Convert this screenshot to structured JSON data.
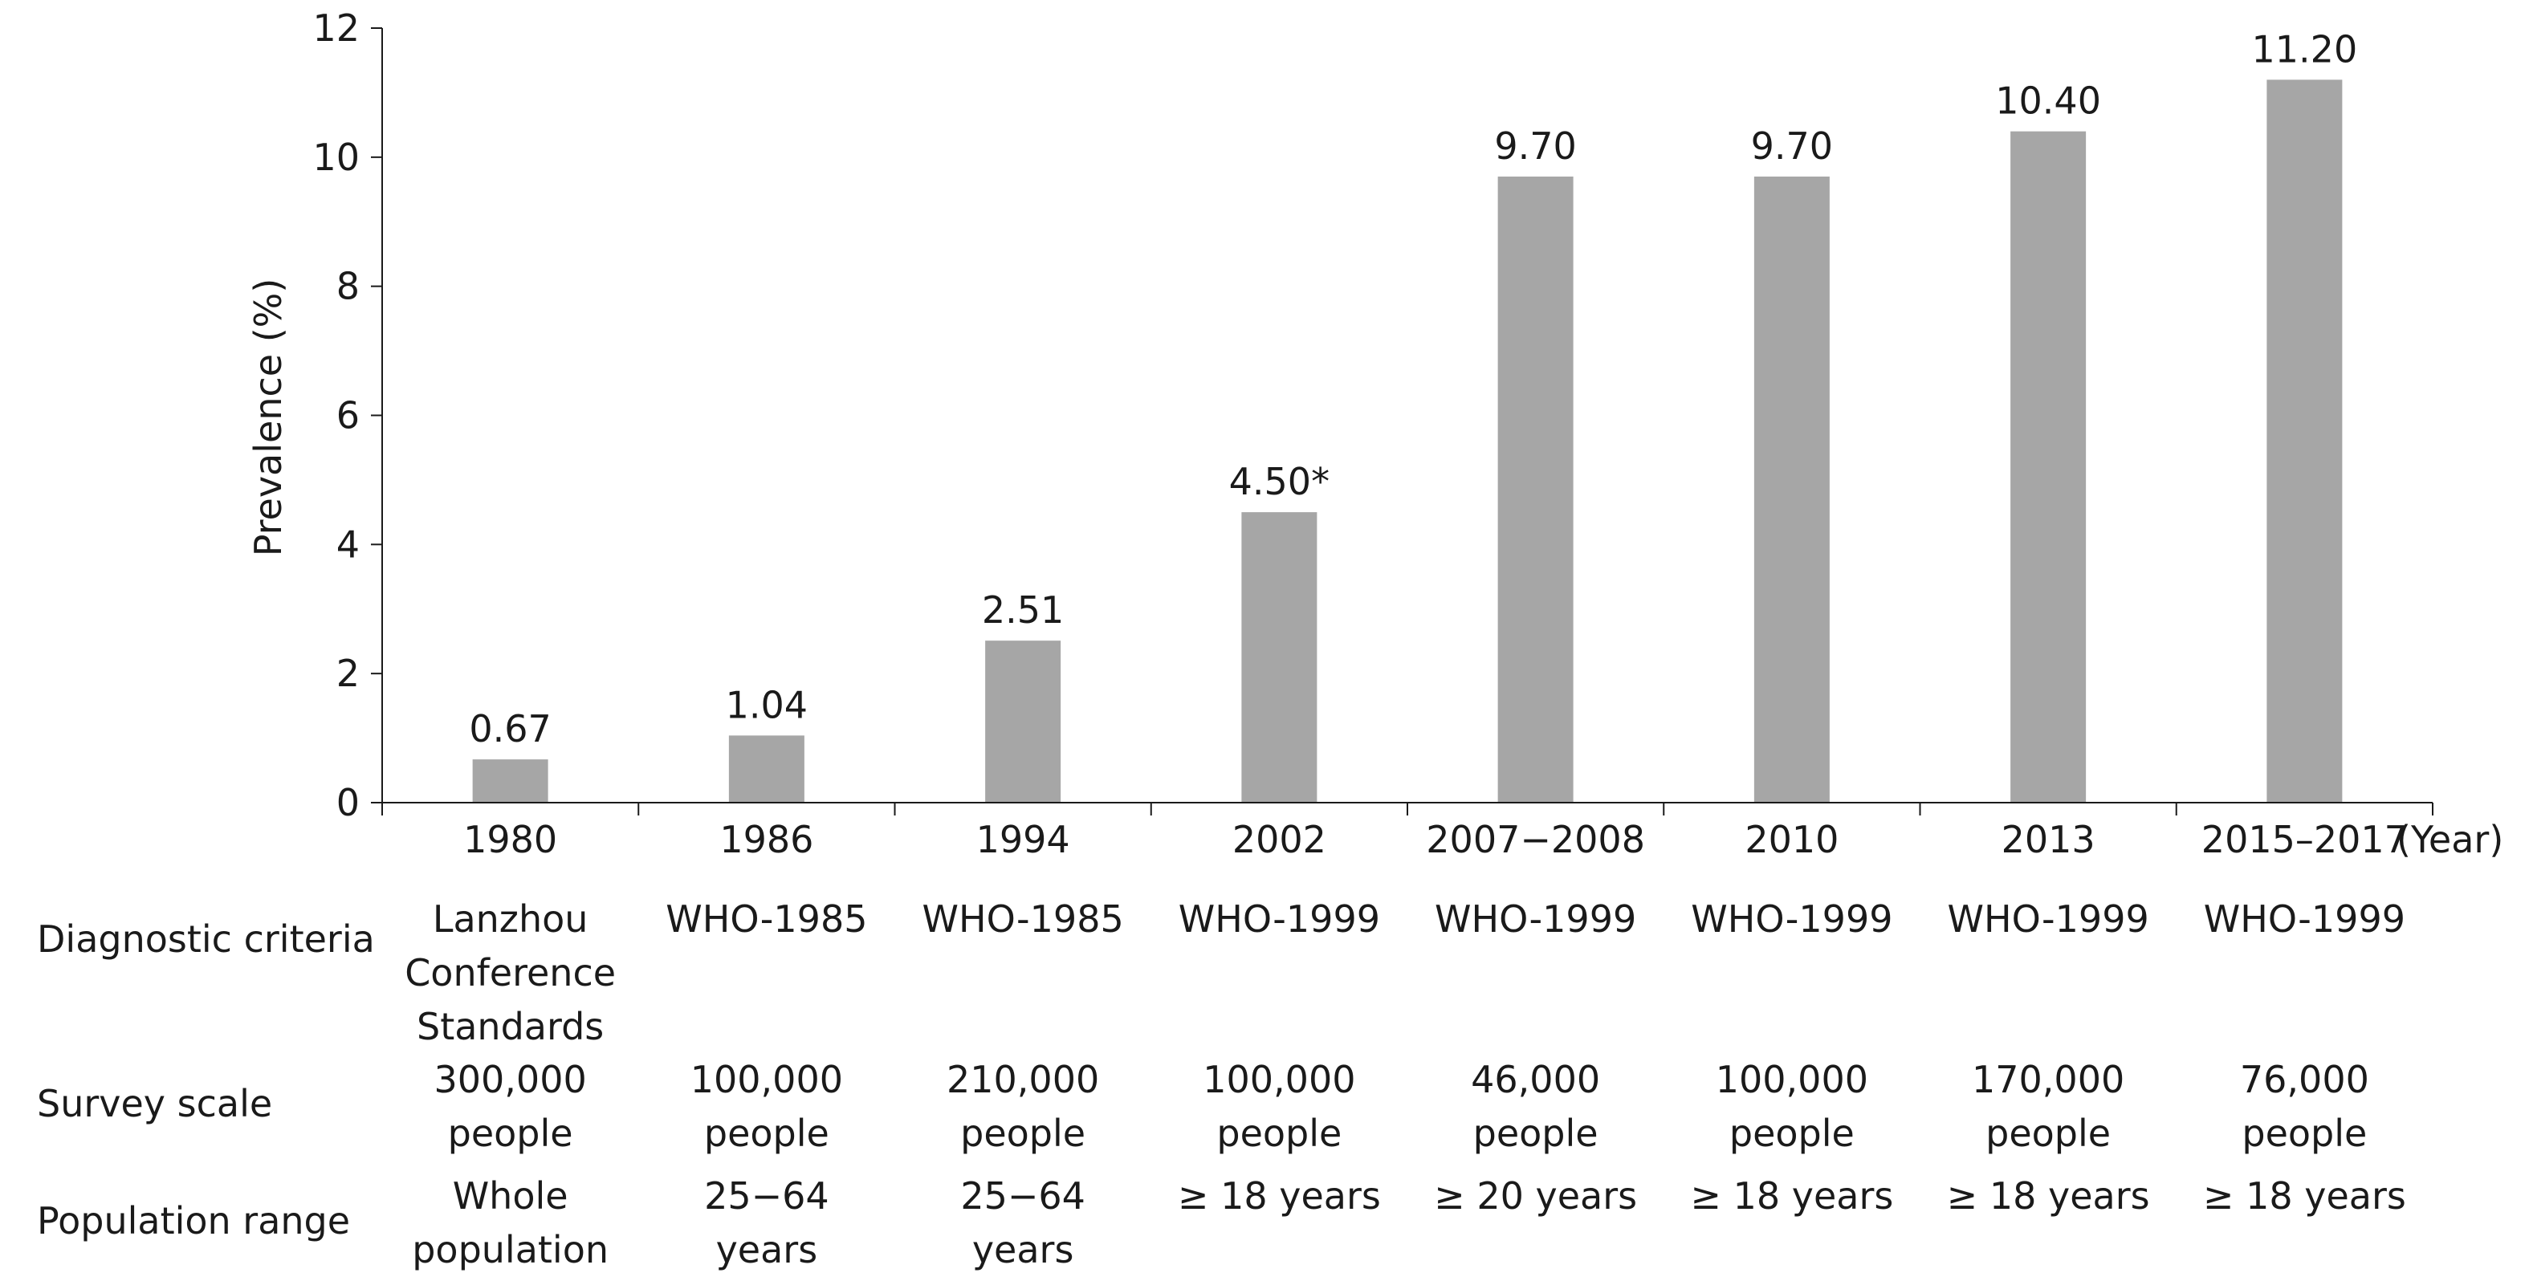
{
  "chart_data": {
    "type": "bar",
    "categories": [
      "1980",
      "1986",
      "1994",
      "2002",
      "2007−2008",
      "2010",
      "2013",
      "2015–2017"
    ],
    "values": [
      0.67,
      1.04,
      2.51,
      4.5,
      9.7,
      9.7,
      10.4,
      11.2
    ],
    "data_labels": [
      "0.67",
      "1.04",
      "2.51",
      "4.50*",
      "9.70",
      "9.70",
      "10.40",
      "11.20"
    ],
    "xlabel": "(Year)",
    "ylabel": "Prevalence (%)",
    "ylim": [
      0,
      12
    ],
    "yticks": [
      "0",
      "2",
      "4",
      "6",
      "8",
      "10",
      "12"
    ],
    "bar_color": "#a6a6a6",
    "grid": false
  },
  "table": {
    "rows": [
      {
        "label": "Diagnostic criteria",
        "cells": [
          "Lanzhou\nConference\nStandards",
          "WHO-1985",
          "WHO-1985",
          "WHO-1999",
          "WHO-1999",
          "WHO-1999",
          "WHO-1999",
          "WHO-1999"
        ]
      },
      {
        "label": "Survey scale",
        "cells": [
          "300,000\npeople",
          "100,000\npeople",
          "210,000\npeople",
          "100,000\npeople",
          "46,000\npeople",
          "100,000\npeople",
          "170,000\npeople",
          "76,000\npeople"
        ]
      },
      {
        "label": "Population range",
        "cells": [
          "Whole\npopulation",
          "25−64 years",
          "25−64 years",
          "≥ 18 years",
          "≥ 20 years",
          "≥ 18 years",
          "≥ 18 years",
          "≥ 18 years"
        ]
      }
    ]
  }
}
